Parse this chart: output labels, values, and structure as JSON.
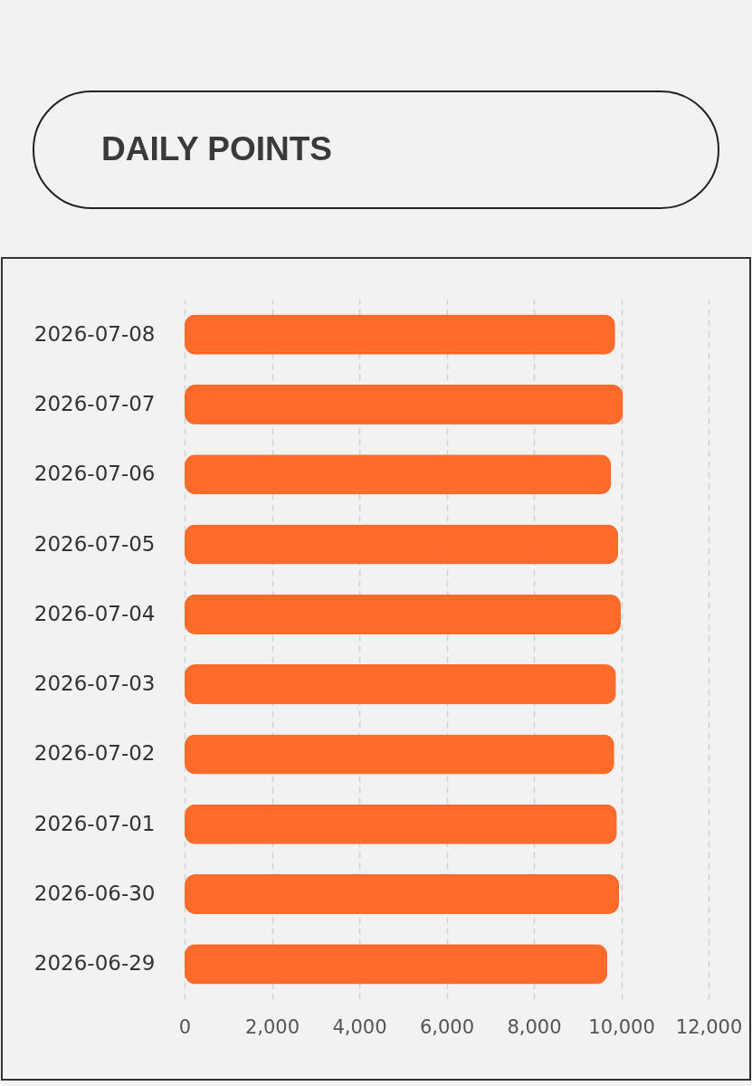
{
  "chart_data": {
    "type": "bar",
    "orientation": "horizontal",
    "title": "DAILY POINTS",
    "categories": [
      "2026-07-08",
      "2026-07-07",
      "2026-07-06",
      "2026-07-05",
      "2026-07-04",
      "2026-07-03",
      "2026-07-02",
      "2026-07-01",
      "2026-06-30",
      "2026-06-29"
    ],
    "series": [
      {
        "color": "#ff6b2b",
        "values": [
          9860,
          10040,
          9770,
          9930,
          9990,
          9880,
          9840,
          9900,
          9950,
          9680
        ]
      }
    ],
    "xlim": [
      0,
      12000
    ],
    "xticks": [
      0,
      {
        "value": 2000,
        "label": "2,000"
      },
      {
        "value": 4000,
        "label": "4,000"
      },
      {
        "value": 6000,
        "label": "6,000"
      },
      {
        "value": 8000,
        "label": "8,000"
      },
      {
        "value": 10000,
        "label": "10,000"
      },
      {
        "value": 12000,
        "label": "12,000"
      }
    ],
    "grid": "x"
  }
}
